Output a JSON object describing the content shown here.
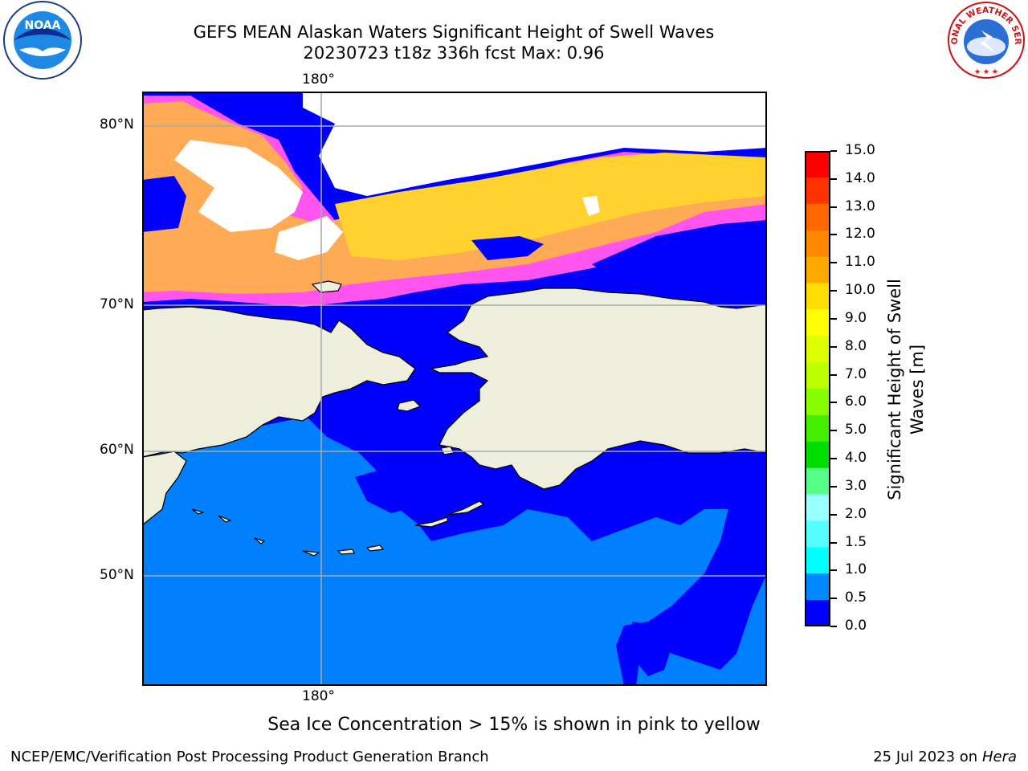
{
  "title": {
    "line1": "GEFS MEAN Alaskan Waters Significant Height of Swell Waves",
    "line2": "20230723 t18z 336h fcst   Max: 0.96"
  },
  "map": {
    "lon_labels": [
      "180°",
      "180°"
    ],
    "lat_labels": [
      "80°N",
      "70°N",
      "60°N",
      "50°N"
    ],
    "colors": {
      "land": "#eeeedd",
      "water_low": "#0000ff",
      "water_mid": "#0080ff",
      "ice_pink": "#ff55ee",
      "ice_orange": "#ffaa55",
      "ice_yellow": "#ffd230",
      "grid": "#aaaaaa"
    }
  },
  "colorbar": {
    "label": "Significant Height of Swell Waves [m]",
    "ticks": [
      "15.0",
      "14.0",
      "13.0",
      "12.0",
      "11.0",
      "10.0",
      "9.0",
      "8.0",
      "7.0",
      "6.0",
      "5.0",
      "4.0",
      "3.0",
      "2.0",
      "1.5",
      "1.0",
      "0.5",
      "0.0"
    ],
    "bins_top_to_bottom": [
      "#ff0000",
      "#ff3300",
      "#ff6600",
      "#ff8800",
      "#ffaa00",
      "#ffdd00",
      "#ffff00",
      "#ddff00",
      "#bbff00",
      "#88ff00",
      "#44ee00",
      "#00dd00",
      "#55ff88",
      "#99ffff",
      "#55ffff",
      "#00ffff",
      "#0088ff",
      "#0000ff"
    ]
  },
  "note": "Sea Ice Concentration > 15% is shown in pink to yellow",
  "footer": {
    "left": "NCEP/EMC/Verification Post Processing Product Generation Branch",
    "date": "25 Jul 2023 on ",
    "machine": "Hera"
  },
  "logos": {
    "left": "NOAA",
    "right": "NATIONAL WEATHER SERVICE"
  }
}
